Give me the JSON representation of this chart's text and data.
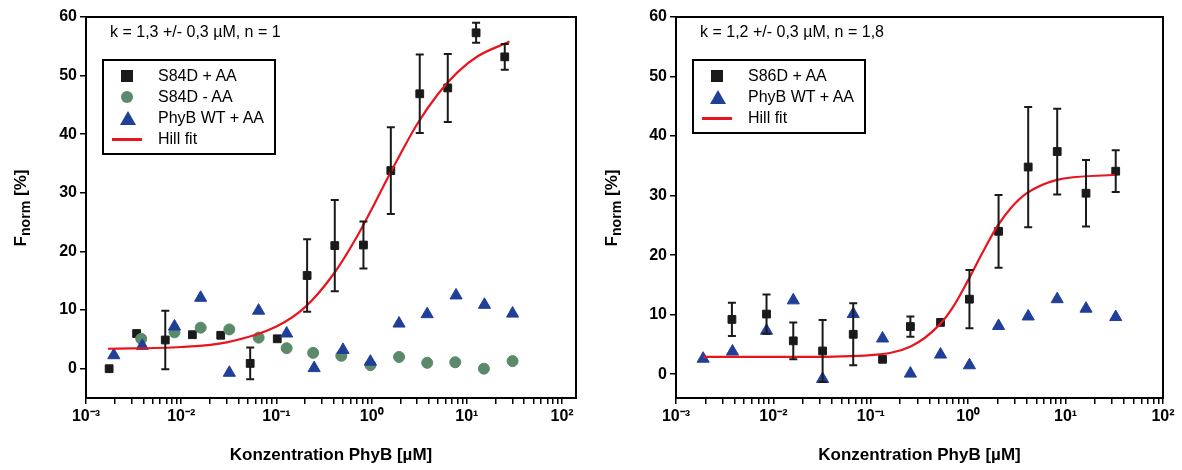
{
  "chart_data": [
    {
      "type": "scatter",
      "xlabel": "Konzentration PhyB [µM]",
      "ylabel": "F$_{norm}$ [%]",
      "annotations": [
        "k = 1,3 +/- 0,3 µM, n = 1"
      ],
      "log": "x",
      "grid": false,
      "legend": "top left",
      "xlim": [
        0.001,
        140
      ],
      "ylim": [
        -5,
        60
      ],
      "xticks": [
        {
          "value": 0.001,
          "label": "10⁻³"
        },
        {
          "value": 0.002,
          "label": null
        },
        {
          "value": 0.003,
          "label": null
        },
        {
          "value": 0.004,
          "label": null
        },
        {
          "value": 0.005,
          "label": null
        },
        {
          "value": 0.006,
          "label": null
        },
        {
          "value": 0.007,
          "label": null
        },
        {
          "value": 0.008,
          "label": null
        },
        {
          "value": 0.009,
          "label": null
        },
        {
          "value": 0.01,
          "label": "10⁻²"
        },
        {
          "value": 0.02,
          "label": null
        },
        {
          "value": 0.03,
          "label": null
        },
        {
          "value": 0.04,
          "label": null
        },
        {
          "value": 0.05,
          "label": null
        },
        {
          "value": 0.06,
          "label": null
        },
        {
          "value": 0.07,
          "label": null
        },
        {
          "value": 0.08,
          "label": null
        },
        {
          "value": 0.09,
          "label": null
        },
        {
          "value": 0.1,
          "label": "10⁻¹"
        },
        {
          "value": 0.2,
          "label": null
        },
        {
          "value": 0.3,
          "label": null
        },
        {
          "value": 0.4,
          "label": null
        },
        {
          "value": 0.5,
          "label": null
        },
        {
          "value": 0.6,
          "label": null
        },
        {
          "value": 0.7,
          "label": null
        },
        {
          "value": 0.8,
          "label": null
        },
        {
          "value": 0.9,
          "label": null
        },
        {
          "value": 1,
          "label": "10⁰"
        },
        {
          "value": 2,
          "label": null
        },
        {
          "value": 3,
          "label": null
        },
        {
          "value": 4,
          "label": null
        },
        {
          "value": 5,
          "label": null
        },
        {
          "value": 6,
          "label": null
        },
        {
          "value": 7,
          "label": null
        },
        {
          "value": 8,
          "label": null
        },
        {
          "value": 9,
          "label": null
        },
        {
          "value": 10,
          "label": "10¹"
        },
        {
          "value": 20,
          "label": null
        },
        {
          "value": 30,
          "label": null
        },
        {
          "value": 40,
          "label": null
        },
        {
          "value": 50,
          "label": null
        },
        {
          "value": 60,
          "label": null
        },
        {
          "value": 70,
          "label": null
        },
        {
          "value": 80,
          "label": null
        },
        {
          "value": 90,
          "label": null
        },
        {
          "value": 100,
          "label": "10²"
        }
      ],
      "yticks": [
        0,
        10,
        20,
        30,
        40,
        50,
        60
      ],
      "series": [
        {
          "name": "S84D + AA",
          "type": "scatter",
          "marker": "square",
          "color": "#1a1a1a",
          "x": [
            0.00175,
            0.0034,
            0.0068,
            0.0131,
            0.026,
            0.053,
            0.102,
            0.21,
            0.41,
            0.82,
            1.59,
            3.2,
            6.3,
            12.5,
            25
          ],
          "values": [
            0,
            6.0,
            4.9,
            5.8,
            5.7,
            0.9,
            5.1,
            15.9,
            21.0,
            21.1,
            33.8,
            46.9,
            47.9,
            57.3,
            53.2
          ],
          "errors": [
            null,
            null,
            5,
            null,
            null,
            2.7,
            null,
            6.2,
            7.8,
            4,
            7.4,
            6.7,
            5.8,
            1.7,
            2.2
          ]
        },
        {
          "name": "S84D - AA",
          "type": "scatter",
          "marker": "circle",
          "color": "#5b8a6b",
          "x": [
            0.0038,
            0.0085,
            0.016,
            0.032,
            0.065,
            0.128,
            0.243,
            0.48,
            0.97,
            1.94,
            3.83,
            7.55,
            15.1,
            30.2
          ],
          "values": [
            5.1,
            6.2,
            7.0,
            6.7,
            5.3,
            3.5,
            2.7,
            2.2,
            0.6,
            2.0,
            1.0,
            1.1,
            0,
            1.3
          ]
        },
        {
          "name": "PhyB WT + AA",
          "type": "scatter",
          "marker": "triangle",
          "color": "#1f3f99",
          "x": [
            0.00196,
            0.0039,
            0.0085,
            0.016,
            0.032,
            0.065,
            0.128,
            0.249,
            0.5,
            0.97,
            1.94,
            3.83,
            7.7,
            15.3,
            30.2
          ],
          "values": [
            2.3,
            3.9,
            7.2,
            12.1,
            -0.7,
            9.9,
            6.0,
            0.1,
            3.2,
            1.2,
            7.7,
            9.3,
            12.5,
            10.9,
            9.4
          ]
        },
        {
          "name": "Hill fit",
          "type": "line",
          "marker": "none",
          "line_style": "solid",
          "color": "#e8141e",
          "x": [
            0.0017,
            0.01,
            0.03,
            0.1,
            0.2,
            0.4,
            0.7,
            1,
            1.5,
            2,
            3,
            5,
            8,
            13,
            28
          ],
          "values": [
            3.4,
            3.7,
            4.5,
            7.2,
            10.5,
            16.2,
            22.5,
            27.2,
            32.8,
            36.6,
            41.7,
            46.9,
            50.6,
            53.3,
            55.8
          ]
        }
      ]
    },
    {
      "type": "scatter",
      "xlabel": "Konzentration PhyB [µM]",
      "ylabel": "F$_{norm}$ [%]",
      "annotations": [
        "k = 1,2 +/- 0,3 µM, n = 1,8"
      ],
      "log": "x",
      "grid": false,
      "legend": "top left",
      "xlim": [
        0.001,
        100
      ],
      "ylim": [
        -4,
        60
      ],
      "xticks": [
        {
          "value": 0.001,
          "label": "10⁻³"
        },
        {
          "value": 0.002,
          "label": null
        },
        {
          "value": 0.003,
          "label": null
        },
        {
          "value": 0.004,
          "label": null
        },
        {
          "value": 0.005,
          "label": null
        },
        {
          "value": 0.006,
          "label": null
        },
        {
          "value": 0.007,
          "label": null
        },
        {
          "value": 0.008,
          "label": null
        },
        {
          "value": 0.009,
          "label": null
        },
        {
          "value": 0.01,
          "label": "10⁻²"
        },
        {
          "value": 0.02,
          "label": null
        },
        {
          "value": 0.03,
          "label": null
        },
        {
          "value": 0.04,
          "label": null
        },
        {
          "value": 0.05,
          "label": null
        },
        {
          "value": 0.06,
          "label": null
        },
        {
          "value": 0.07,
          "label": null
        },
        {
          "value": 0.08,
          "label": null
        },
        {
          "value": 0.09,
          "label": null
        },
        {
          "value": 0.1,
          "label": "10⁻¹"
        },
        {
          "value": 0.2,
          "label": null
        },
        {
          "value": 0.3,
          "label": null
        },
        {
          "value": 0.4,
          "label": null
        },
        {
          "value": 0.5,
          "label": null
        },
        {
          "value": 0.6,
          "label": null
        },
        {
          "value": 0.7,
          "label": null
        },
        {
          "value": 0.8,
          "label": null
        },
        {
          "value": 0.9,
          "label": null
        },
        {
          "value": 1,
          "label": "10⁰"
        },
        {
          "value": 2,
          "label": null
        },
        {
          "value": 3,
          "label": null
        },
        {
          "value": 4,
          "label": null
        },
        {
          "value": 5,
          "label": null
        },
        {
          "value": 6,
          "label": null
        },
        {
          "value": 7,
          "label": null
        },
        {
          "value": 8,
          "label": null
        },
        {
          "value": 9,
          "label": null
        },
        {
          "value": 10,
          "label": "10¹"
        },
        {
          "value": 20,
          "label": null
        },
        {
          "value": 30,
          "label": null
        },
        {
          "value": 40,
          "label": null
        },
        {
          "value": 50,
          "label": null
        },
        {
          "value": 60,
          "label": null
        },
        {
          "value": 70,
          "label": null
        },
        {
          "value": 80,
          "label": null
        },
        {
          "value": 90,
          "label": null
        },
        {
          "value": 100,
          "label": "10²"
        }
      ],
      "yticks": [
        0,
        10,
        20,
        30,
        40,
        50,
        60
      ],
      "series": [
        {
          "name": "S86D + AA",
          "type": "scatter",
          "marker": "square",
          "color": "#1a1a1a",
          "x": [
            0.00375,
            0.0085,
            0.016,
            0.032,
            0.066,
            0.132,
            0.255,
            0.52,
            1.03,
            2.05,
            4.13,
            8.2,
            16.2,
            32.7
          ],
          "values": [
            9.2,
            10.1,
            5.6,
            3.9,
            6.7,
            2.5,
            8.0,
            8.7,
            12.6,
            24.0,
            34.8,
            37.4,
            30.4,
            34.1
          ],
          "errors": [
            2.8,
            3.3,
            3.1,
            5.2,
            5.2,
            null,
            1.7,
            null,
            4.9,
            6.1,
            10.1,
            7.2,
            5.6,
            3.5
          ]
        },
        {
          "name": "PhyB WT + AA",
          "type": "scatter",
          "marker": "triangle",
          "color": "#1f3f99",
          "x": [
            0.0019,
            0.0038,
            0.0085,
            0.016,
            0.032,
            0.066,
            0.132,
            0.255,
            0.52,
            1.03,
            2.05,
            4.13,
            8.2,
            16.2,
            32.7
          ],
          "values": [
            2.6,
            3.8,
            7.3,
            12.4,
            -0.8,
            10.1,
            6.0,
            0.1,
            3.3,
            1.5,
            8.1,
            9.7,
            12.6,
            11.0,
            9.6
          ]
        },
        {
          "name": "Hill fit",
          "type": "line",
          "marker": "none",
          "line_style": "solid",
          "color": "#e8141e",
          "x": [
            0.0019,
            0.02,
            0.1,
            0.26,
            0.5,
            0.7,
            1,
            1.4,
            2,
            2.8,
            4,
            8,
            33
          ],
          "values": [
            2.9,
            2.9,
            3.2,
            4.7,
            8.2,
            11.3,
            15.8,
            20.4,
            24.9,
            28.1,
            30.4,
            32.6,
            33.5
          ]
        }
      ]
    }
  ]
}
